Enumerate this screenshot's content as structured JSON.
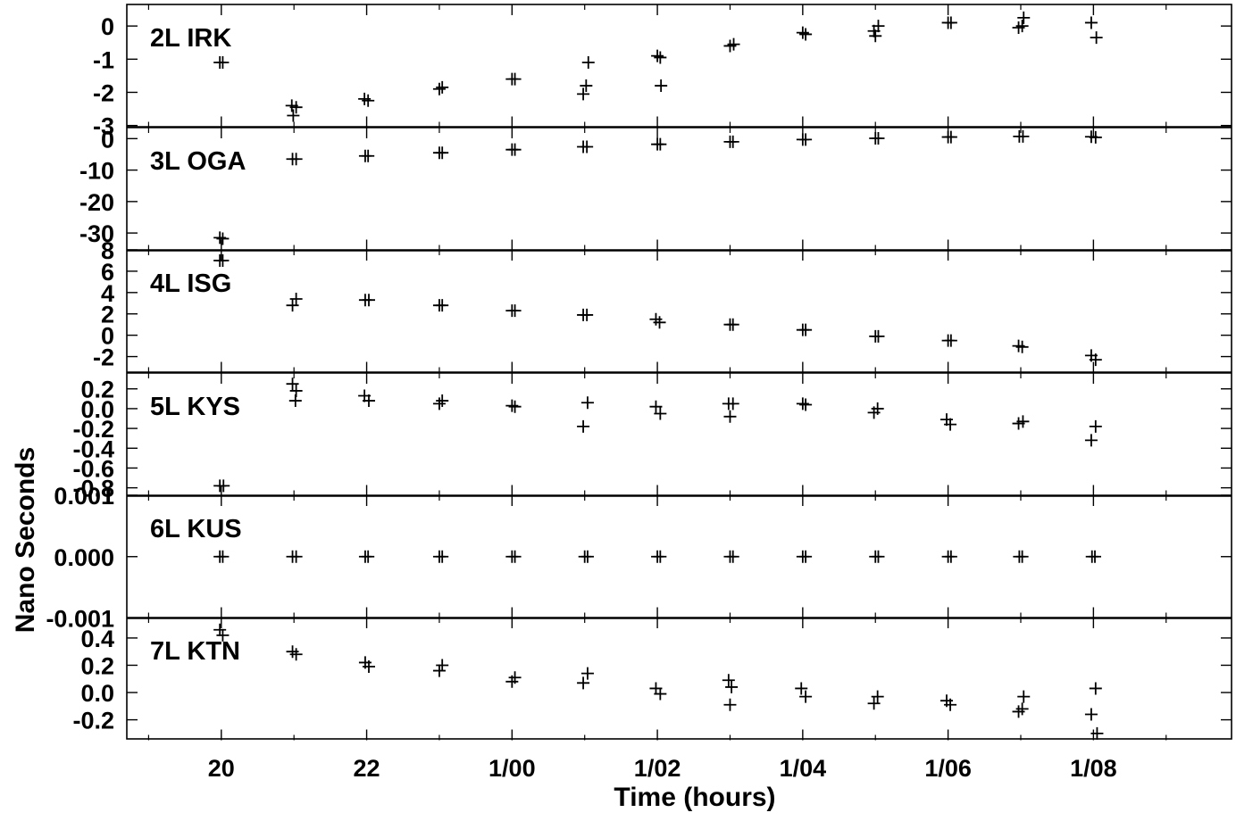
{
  "chart_data": {
    "type": "scatter",
    "xlabel": "Time (hours)",
    "ylabel": "Nano Seconds",
    "x_axis": {
      "unit": "hours since 19:00 (day 0)",
      "range": [
        18.7,
        33.9
      ],
      "tick_values": [
        20,
        22,
        24,
        26,
        28,
        30,
        32
      ],
      "tick_labels": [
        "20",
        "22",
        "1/00",
        "1/02",
        "1/04",
        "1/06",
        "1/08"
      ],
      "minor_tick_values": [
        19,
        21,
        23,
        25,
        27,
        29,
        31,
        33
      ]
    },
    "marker": "plus",
    "grid": false,
    "panels": [
      {
        "label": "2L IRK",
        "ylim": [
          -3.05,
          0.65
        ],
        "yticks": [
          0,
          -1,
          -2,
          -3
        ],
        "ytick_labels": [
          "0",
          "-1",
          "-2",
          "-3"
        ],
        "points": [
          [
            19.98,
            -1.1
          ],
          [
            20.02,
            -1.1
          ],
          [
            20.97,
            -2.4
          ],
          [
            21.03,
            -2.45
          ],
          [
            20.99,
            -2.7
          ],
          [
            21.97,
            -2.2
          ],
          [
            22.02,
            -2.25
          ],
          [
            23.0,
            -1.9
          ],
          [
            23.04,
            -1.85
          ],
          [
            24.0,
            -1.6
          ],
          [
            24.04,
            -1.6
          ],
          [
            24.98,
            -2.05
          ],
          [
            25.02,
            -1.8
          ],
          [
            25.05,
            -1.1
          ],
          [
            26.0,
            -0.9
          ],
          [
            26.04,
            -0.95
          ],
          [
            26.05,
            -1.8
          ],
          [
            27.0,
            -0.6
          ],
          [
            27.05,
            -0.55
          ],
          [
            28.0,
            -0.2
          ],
          [
            28.04,
            -0.25
          ],
          [
            28.98,
            -0.15
          ],
          [
            29.0,
            -0.3
          ],
          [
            29.04,
            0.0
          ],
          [
            30.0,
            0.1
          ],
          [
            30.04,
            0.1
          ],
          [
            30.97,
            -0.05
          ],
          [
            31.02,
            0.0
          ],
          [
            31.04,
            0.25
          ],
          [
            31.97,
            0.1
          ],
          [
            32.04,
            -0.35
          ]
        ]
      },
      {
        "label": "3L OGA",
        "ylim": [
          -35.5,
          3.5
        ],
        "yticks": [
          0,
          -10,
          -20,
          -30
        ],
        "ytick_labels": [
          "0",
          "-10",
          "-20",
          "-30"
        ],
        "points": [
          [
            19.98,
            -31.5
          ],
          [
            20.02,
            -31.8
          ],
          [
            20.98,
            -6.5
          ],
          [
            21.03,
            -6.5
          ],
          [
            21.98,
            -5.5
          ],
          [
            22.02,
            -5.5
          ],
          [
            23.0,
            -4.5
          ],
          [
            23.04,
            -4.5
          ],
          [
            24.0,
            -3.5
          ],
          [
            24.04,
            -3.5
          ],
          [
            24.98,
            -2.6
          ],
          [
            25.03,
            -2.6
          ],
          [
            26.0,
            -1.8
          ],
          [
            26.04,
            -1.8
          ],
          [
            27.0,
            -1.0
          ],
          [
            27.04,
            -1.0
          ],
          [
            28.0,
            -0.3
          ],
          [
            28.04,
            -0.3
          ],
          [
            29.0,
            0.1
          ],
          [
            29.04,
            0.1
          ],
          [
            30.0,
            0.5
          ],
          [
            30.04,
            0.5
          ],
          [
            30.98,
            0.7
          ],
          [
            31.03,
            0.7
          ],
          [
            31.97,
            0.6
          ],
          [
            32.03,
            0.4
          ]
        ]
      },
      {
        "label": "4L ISG",
        "ylim": [
          -3.5,
          8.0
        ],
        "yticks": [
          8,
          6,
          4,
          2,
          0,
          -2
        ],
        "ytick_labels": [
          "8",
          "6",
          "4",
          "2",
          "0",
          "-2"
        ],
        "points": [
          [
            19.98,
            7.0
          ],
          [
            20.02,
            7.0
          ],
          [
            20.98,
            2.8
          ],
          [
            21.03,
            3.4
          ],
          [
            21.98,
            3.3
          ],
          [
            22.03,
            3.3
          ],
          [
            23.0,
            2.8
          ],
          [
            23.04,
            2.8
          ],
          [
            24.0,
            2.3
          ],
          [
            24.04,
            2.3
          ],
          [
            24.98,
            1.9
          ],
          [
            25.03,
            1.9
          ],
          [
            25.98,
            1.5
          ],
          [
            26.03,
            1.2
          ],
          [
            27.0,
            1.0
          ],
          [
            27.04,
            1.0
          ],
          [
            28.0,
            0.5
          ],
          [
            28.04,
            0.5
          ],
          [
            29.0,
            -0.1
          ],
          [
            29.04,
            -0.1
          ],
          [
            30.0,
            -0.5
          ],
          [
            30.04,
            -0.5
          ],
          [
            30.97,
            -1.0
          ],
          [
            31.02,
            -1.1
          ],
          [
            31.97,
            -1.9
          ],
          [
            32.03,
            -2.3
          ]
        ]
      },
      {
        "label": "5L KYS",
        "ylim": [
          -0.88,
          0.36
        ],
        "yticks": [
          0.2,
          0.0,
          -0.2,
          -0.4,
          -0.6,
          -0.8
        ],
        "ytick_labels": [
          "0.2",
          "0.0",
          "-0.2",
          "-0.4",
          "-0.6",
          "-0.8"
        ],
        "points": [
          [
            19.98,
            -0.78
          ],
          [
            20.03,
            -0.78
          ],
          [
            20.98,
            0.25
          ],
          [
            21.03,
            0.18
          ],
          [
            21.02,
            0.08
          ],
          [
            21.97,
            0.13
          ],
          [
            22.03,
            0.08
          ],
          [
            23.0,
            0.05
          ],
          [
            23.04,
            0.08
          ],
          [
            24.0,
            0.03
          ],
          [
            24.04,
            0.02
          ],
          [
            24.98,
            -0.18
          ],
          [
            25.04,
            0.06
          ],
          [
            25.98,
            0.02
          ],
          [
            26.04,
            -0.05
          ],
          [
            26.98,
            0.05
          ],
          [
            27.04,
            0.05
          ],
          [
            27.0,
            -0.08
          ],
          [
            28.0,
            0.05
          ],
          [
            28.04,
            0.04
          ],
          [
            28.98,
            -0.04
          ],
          [
            29.03,
            0.0
          ],
          [
            29.98,
            -0.11
          ],
          [
            30.03,
            -0.16
          ],
          [
            30.97,
            -0.15
          ],
          [
            31.03,
            -0.13
          ],
          [
            31.97,
            -0.32
          ],
          [
            32.03,
            -0.18
          ]
        ]
      },
      {
        "label": "6L KUS",
        "ylim": [
          -0.001,
          0.001
        ],
        "yticks": [
          0.001,
          0.0,
          -0.001
        ],
        "ytick_labels": [
          "0.001",
          "0.000",
          "-0.001"
        ],
        "points": [
          [
            19.98,
            0
          ],
          [
            20.02,
            0
          ],
          [
            20.98,
            0
          ],
          [
            21.03,
            0
          ],
          [
            21.98,
            0
          ],
          [
            22.02,
            0
          ],
          [
            23.0,
            0
          ],
          [
            23.04,
            0
          ],
          [
            24.0,
            0
          ],
          [
            24.04,
            0
          ],
          [
            25.0,
            0
          ],
          [
            25.04,
            0
          ],
          [
            26.0,
            0
          ],
          [
            26.04,
            0
          ],
          [
            27.0,
            0
          ],
          [
            27.04,
            0
          ],
          [
            28.0,
            0
          ],
          [
            28.04,
            0
          ],
          [
            29.0,
            0
          ],
          [
            29.04,
            0
          ],
          [
            30.0,
            0
          ],
          [
            30.04,
            0
          ],
          [
            30.98,
            0
          ],
          [
            31.02,
            0
          ],
          [
            31.98,
            0
          ],
          [
            32.02,
            0
          ]
        ]
      },
      {
        "label": "7L KTN",
        "ylim": [
          -0.35,
          0.55
        ],
        "yticks": [
          0.4,
          0.2,
          0.0,
          -0.2
        ],
        "ytick_labels": [
          "0.4",
          "0.2",
          "0.0",
          "-0.2"
        ],
        "points": [
          [
            19.98,
            0.46
          ],
          [
            20.02,
            0.42
          ],
          [
            20.98,
            0.3
          ],
          [
            21.03,
            0.28
          ],
          [
            21.98,
            0.22
          ],
          [
            22.03,
            0.19
          ],
          [
            23.0,
            0.16
          ],
          [
            23.04,
            0.2
          ],
          [
            24.0,
            0.08
          ],
          [
            24.04,
            0.11
          ],
          [
            24.98,
            0.07
          ],
          [
            25.04,
            0.14
          ],
          [
            25.98,
            0.03
          ],
          [
            26.04,
            -0.01
          ],
          [
            26.98,
            0.09
          ],
          [
            27.02,
            0.04
          ],
          [
            27.0,
            -0.09
          ],
          [
            27.98,
            0.03
          ],
          [
            28.04,
            -0.03
          ],
          [
            28.98,
            -0.08
          ],
          [
            29.03,
            -0.03
          ],
          [
            29.98,
            -0.06
          ],
          [
            30.03,
            -0.09
          ],
          [
            30.97,
            -0.14
          ],
          [
            31.02,
            -0.12
          ],
          [
            31.04,
            -0.03
          ],
          [
            31.97,
            -0.16
          ],
          [
            32.03,
            0.03
          ],
          [
            32.05,
            -0.3
          ]
        ]
      }
    ]
  }
}
